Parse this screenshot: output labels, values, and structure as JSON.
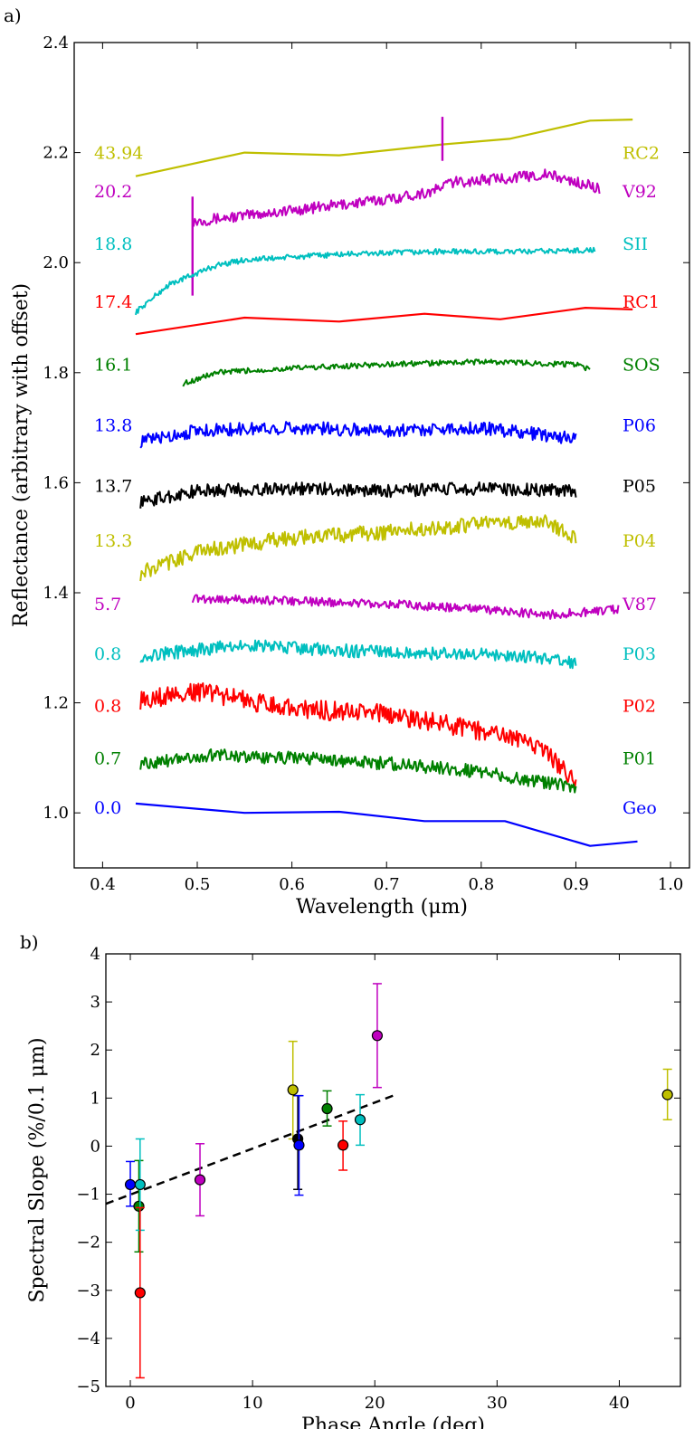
{
  "chart_data": [
    {
      "panel_label": "a)",
      "type": "line",
      "xlabel": "Wavelength (μm)",
      "ylabel": "Reflectance (arbitrary with offset)",
      "xlim": [
        0.37,
        1.02
      ],
      "ylim": [
        0.9,
        2.4
      ],
      "xticks": [
        "0.4",
        "0.5",
        "0.6",
        "0.7",
        "0.8",
        "0.9",
        "1.0"
      ],
      "yticks": [
        "1.0",
        "1.2",
        "1.4",
        "1.6",
        "1.8",
        "2.0",
        "2.2",
        "2.4"
      ],
      "series": [
        {
          "name": "RC2",
          "phase": "43.94",
          "color": "#bfbf00",
          "mode": "smooth",
          "y_label": 2.2,
          "pts": [
            [
              0.435,
              2.157
            ],
            [
              0.55,
              2.2
            ],
            [
              0.65,
              2.195
            ],
            [
              0.76,
              2.215
            ],
            [
              0.83,
              2.225
            ],
            [
              0.915,
              2.258
            ],
            [
              0.96,
              2.26
            ]
          ]
        },
        {
          "name": "V92",
          "phase": "20.2",
          "color": "#bf00bf",
          "mode": "noisy",
          "amp": 0.01,
          "y_label": 2.13,
          "pts": [
            [
              0.495,
              2.075
            ],
            [
              0.6,
              2.095
            ],
            [
              0.7,
              2.115
            ],
            [
              0.75,
              2.13
            ],
            [
              0.76,
              2.14
            ],
            [
              0.765,
              2.145
            ],
            [
              0.8,
              2.15
            ],
            [
              0.87,
              2.16
            ],
            [
              0.925,
              2.135
            ]
          ],
          "spikes": [
            [
              0.495,
              1.94,
              2.12
            ],
            [
              0.759,
              2.185,
              2.265
            ]
          ]
        },
        {
          "name": "SII",
          "phase": "18.8",
          "color": "#00bfbf",
          "mode": "noisy",
          "amp": 0.005,
          "y_label": 2.035,
          "pts": [
            [
              0.435,
              1.91
            ],
            [
              0.47,
              1.96
            ],
            [
              0.52,
              1.995
            ],
            [
              0.55,
              2.005
            ],
            [
              0.65,
              2.015
            ],
            [
              0.75,
              2.02
            ],
            [
              0.85,
              2.02
            ],
            [
              0.92,
              2.023
            ]
          ]
        },
        {
          "name": "RC1",
          "phase": "17.4",
          "color": "#ff0000",
          "mode": "smooth",
          "y_label": 1.93,
          "pts": [
            [
              0.435,
              1.87
            ],
            [
              0.55,
              1.9
            ],
            [
              0.65,
              1.893
            ],
            [
              0.74,
              1.907
            ],
            [
              0.82,
              1.897
            ],
            [
              0.91,
              1.918
            ],
            [
              0.96,
              1.915
            ]
          ]
        },
        {
          "name": "SOS",
          "phase": "16.1",
          "color": "#008000",
          "mode": "noisy",
          "amp": 0.005,
          "y_label": 1.815,
          "pts": [
            [
              0.485,
              1.78
            ],
            [
              0.52,
              1.8
            ],
            [
              0.6,
              1.808
            ],
            [
              0.7,
              1.815
            ],
            [
              0.8,
              1.82
            ],
            [
              0.9,
              1.815
            ],
            [
              0.915,
              1.805
            ]
          ]
        },
        {
          "name": "P06",
          "phase": "13.8",
          "color": "#0000ff",
          "mode": "noisy",
          "amp": 0.012,
          "y_label": 1.705,
          "pts": [
            [
              0.44,
              1.675
            ],
            [
              0.5,
              1.695
            ],
            [
              0.6,
              1.7
            ],
            [
              0.7,
              1.695
            ],
            [
              0.8,
              1.7
            ],
            [
              0.9,
              1.68
            ]
          ]
        },
        {
          "name": "P05",
          "phase": "13.7",
          "color": "#000000",
          "mode": "noisy",
          "amp": 0.012,
          "y_label": 1.595,
          "pts": [
            [
              0.44,
              1.565
            ],
            [
              0.5,
              1.585
            ],
            [
              0.6,
              1.59
            ],
            [
              0.7,
              1.585
            ],
            [
              0.8,
              1.59
            ],
            [
              0.9,
              1.585
            ]
          ]
        },
        {
          "name": "P04",
          "phase": "13.3",
          "color": "#bfbf00",
          "mode": "noisy",
          "amp": 0.014,
          "y_label": 1.495,
          "pts": [
            [
              0.44,
              1.435
            ],
            [
              0.5,
              1.475
            ],
            [
              0.6,
              1.5
            ],
            [
              0.7,
              1.51
            ],
            [
              0.8,
              1.525
            ],
            [
              0.87,
              1.53
            ],
            [
              0.9,
              1.5
            ]
          ]
        },
        {
          "name": "V87",
          "phase": "5.7",
          "color": "#bf00bf",
          "mode": "noisy",
          "amp": 0.008,
          "y_label": 1.38,
          "pts": [
            [
              0.495,
              1.39
            ],
            [
              0.6,
              1.385
            ],
            [
              0.7,
              1.38
            ],
            [
              0.8,
              1.37
            ],
            [
              0.87,
              1.36
            ],
            [
              0.945,
              1.37
            ]
          ]
        },
        {
          "name": "P03",
          "phase": "0.8",
          "color": "#00bfbf",
          "mode": "noisy",
          "amp": 0.012,
          "y_label": 1.29,
          "pts": [
            [
              0.44,
              1.285
            ],
            [
              0.55,
              1.305
            ],
            [
              0.65,
              1.295
            ],
            [
              0.75,
              1.29
            ],
            [
              0.85,
              1.285
            ],
            [
              0.9,
              1.27
            ]
          ]
        },
        {
          "name": "P02",
          "phase": "0.8",
          "color": "#ff0000",
          "mode": "noisy",
          "amp": 0.018,
          "y_label": 1.195,
          "pts": [
            [
              0.44,
              1.205
            ],
            [
              0.5,
              1.22
            ],
            [
              0.6,
              1.19
            ],
            [
              0.7,
              1.18
            ],
            [
              0.8,
              1.15
            ],
            [
              0.86,
              1.12
            ],
            [
              0.9,
              1.06
            ]
          ]
        },
        {
          "name": "P01",
          "phase": "0.7",
          "color": "#008000",
          "mode": "noisy",
          "amp": 0.012,
          "y_label": 1.1,
          "pts": [
            [
              0.44,
              1.09
            ],
            [
              0.52,
              1.105
            ],
            [
              0.6,
              1.1
            ],
            [
              0.7,
              1.09
            ],
            [
              0.8,
              1.075
            ],
            [
              0.9,
              1.045
            ]
          ]
        },
        {
          "name": "Geo",
          "phase": "0.0",
          "color": "#0000ff",
          "mode": "smooth",
          "y_label": 1.01,
          "pts": [
            [
              0.435,
              1.017
            ],
            [
              0.55,
              1.0
            ],
            [
              0.65,
              1.002
            ],
            [
              0.74,
              0.985
            ],
            [
              0.825,
              0.985
            ],
            [
              0.915,
              0.94
            ],
            [
              0.965,
              0.948
            ]
          ]
        }
      ]
    },
    {
      "panel_label": "b)",
      "type": "scatter",
      "xlabel": "Phase Angle (deg)",
      "ylabel": "Spectral Slope (%/0.1 μm)",
      "xlim": [
        -2,
        45
      ],
      "ylim": [
        -5,
        4
      ],
      "xticks": [
        "0",
        "10",
        "20",
        "30",
        "40"
      ],
      "yticks": [
        "−5",
        "−4",
        "−3",
        "−2",
        "−1",
        "0",
        "1",
        "2",
        "3",
        "4"
      ],
      "fit_line": {
        "x": [
          -2,
          21.5
        ],
        "y": [
          -1.2,
          1.05
        ]
      },
      "points": [
        {
          "x": 0.0,
          "y": -0.8,
          "lo": -1.25,
          "hi": -0.32,
          "color": "#0000ff"
        },
        {
          "x": 0.7,
          "y": -1.25,
          "lo": -2.2,
          "hi": -0.3,
          "color": "#008000"
        },
        {
          "x": 0.8,
          "y": -0.8,
          "lo": -1.75,
          "hi": 0.15,
          "color": "#00bfbf"
        },
        {
          "x": 0.8,
          "y": -3.05,
          "lo": -4.82,
          "hi": -1.28,
          "color": "#ff0000"
        },
        {
          "x": 5.7,
          "y": -0.7,
          "lo": -1.45,
          "hi": 0.05,
          "color": "#bf00bf"
        },
        {
          "x": 13.3,
          "y": 1.17,
          "lo": 0.15,
          "hi": 2.18,
          "color": "#bfbf00"
        },
        {
          "x": 13.7,
          "y": 0.15,
          "lo": -0.9,
          "hi": 1.05,
          "color": "#000000"
        },
        {
          "x": 13.8,
          "y": 0.02,
          "lo": -1.02,
          "hi": 1.05,
          "color": "#0000ff"
        },
        {
          "x": 16.1,
          "y": 0.78,
          "lo": 0.42,
          "hi": 1.15,
          "color": "#008000"
        },
        {
          "x": 17.4,
          "y": 0.02,
          "lo": -0.5,
          "hi": 0.52,
          "color": "#ff0000"
        },
        {
          "x": 18.8,
          "y": 0.55,
          "lo": 0.02,
          "hi": 1.07,
          "color": "#00bfbf"
        },
        {
          "x": 20.2,
          "y": 2.3,
          "lo": 1.22,
          "hi": 3.38,
          "color": "#bf00bf"
        },
        {
          "x": 43.94,
          "y": 1.07,
          "lo": 0.55,
          "hi": 1.6,
          "color": "#bfbf00"
        }
      ]
    }
  ]
}
